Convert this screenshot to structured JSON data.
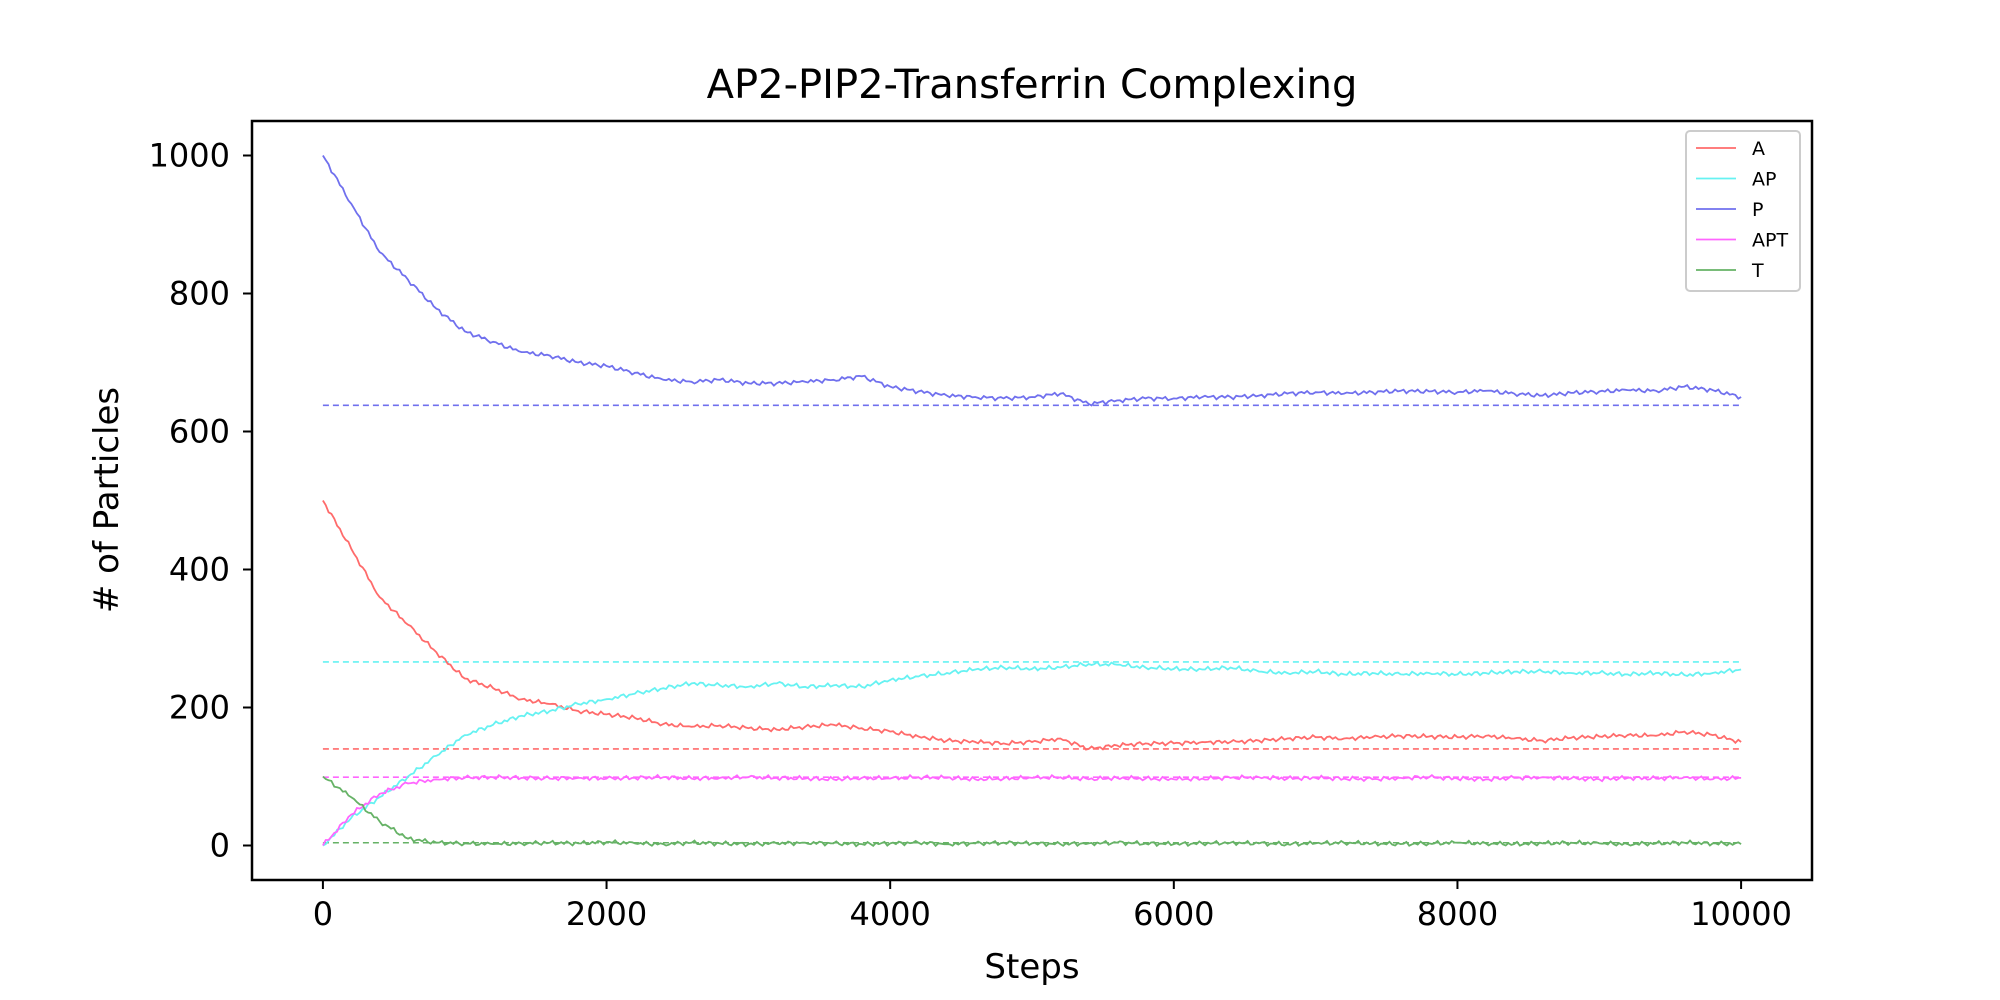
{
  "chart_data": {
    "type": "line",
    "title": "AP2-PIP2-Transferrin Complexing",
    "xlabel": "Steps",
    "ylabel": "# of Particles",
    "xlim": [
      -500,
      10500
    ],
    "ylim": [
      -50,
      1050
    ],
    "xticks": [
      0,
      2000,
      4000,
      6000,
      8000,
      10000
    ],
    "yticks": [
      0,
      200,
      400,
      600,
      800,
      1000
    ],
    "grid": false,
    "legend_position": "top-right",
    "x": [
      0,
      200,
      400,
      600,
      800,
      1000,
      1200,
      1400,
      1600,
      1800,
      2000,
      2200,
      2400,
      2600,
      2800,
      3000,
      3200,
      3400,
      3600,
      3800,
      4000,
      4200,
      4400,
      4600,
      4800,
      5000,
      5200,
      5400,
      5600,
      5800,
      6000,
      6200,
      6400,
      6600,
      6800,
      7000,
      7200,
      7400,
      7600,
      7800,
      8000,
      8200,
      8400,
      8600,
      8800,
      9000,
      9200,
      9400,
      9600,
      9800,
      10000
    ],
    "series": [
      {
        "name": "A",
        "color": "#ff6b6b",
        "values": [
          500,
          430,
          360,
          320,
          280,
          242,
          228,
          212,
          205,
          195,
          190,
          185,
          176,
          172,
          174,
          170,
          168,
          172,
          175,
          170,
          165,
          158,
          152,
          150,
          148,
          150,
          155,
          140,
          145,
          148,
          148,
          150,
          150,
          152,
          155,
          157,
          155,
          157,
          159,
          158,
          157,
          159,
          155,
          152,
          156,
          158,
          160,
          159,
          165,
          160,
          150
        ]
      },
      {
        "name": "AP",
        "color": "#66f2f2",
        "values": [
          0,
          40,
          70,
          100,
          130,
          160,
          175,
          188,
          195,
          205,
          212,
          220,
          228,
          235,
          232,
          230,
          235,
          230,
          232,
          230,
          240,
          245,
          250,
          255,
          258,
          256,
          258,
          263,
          262,
          258,
          256,
          255,
          258,
          252,
          250,
          252,
          248,
          250,
          248,
          250,
          248,
          250,
          252,
          252,
          250,
          250,
          248,
          250,
          247,
          250,
          255
        ]
      },
      {
        "name": "P",
        "color": "#7070ee",
        "values": [
          1000,
          930,
          860,
          820,
          778,
          745,
          730,
          715,
          710,
          700,
          695,
          685,
          675,
          672,
          675,
          670,
          670,
          672,
          675,
          680,
          665,
          658,
          652,
          650,
          648,
          650,
          655,
          640,
          645,
          648,
          648,
          650,
          650,
          652,
          655,
          657,
          655,
          657,
          659,
          658,
          657,
          659,
          655,
          652,
          656,
          658,
          660,
          659,
          665,
          660,
          650
        ]
      },
      {
        "name": "APT",
        "color": "#ff66ff",
        "values": [
          0,
          45,
          75,
          90,
          96,
          98,
          99,
          98,
          97,
          98,
          97,
          98,
          99,
          97,
          98,
          99,
          98,
          97,
          96,
          98,
          97,
          99,
          98,
          96,
          97,
          98,
          99,
          96,
          98,
          97,
          96,
          97,
          98,
          99,
          97,
          98,
          97,
          96,
          98,
          99,
          97,
          96,
          98,
          99,
          97,
          96,
          98,
          97,
          99,
          96,
          98
        ]
      },
      {
        "name": "T",
        "color": "#66b266",
        "values": [
          100,
          70,
          35,
          10,
          4,
          3,
          2,
          3,
          4,
          3,
          5,
          3,
          2,
          4,
          3,
          2,
          3,
          4,
          3,
          2,
          3,
          4,
          2,
          3,
          4,
          3,
          2,
          3,
          4,
          3,
          2,
          3,
          4,
          3,
          2,
          3,
          4,
          3,
          2,
          3,
          4,
          3,
          2,
          3,
          4,
          3,
          2,
          3,
          4,
          3,
          2
        ]
      }
    ],
    "reference_lines": [
      {
        "series": "P",
        "color": "#7070ee",
        "y": 638,
        "x_range": [
          0,
          10000
        ]
      },
      {
        "series": "AP",
        "color": "#66f2f2",
        "y": 266,
        "x_range": [
          0,
          10000
        ]
      },
      {
        "series": "A",
        "color": "#ff6b6b",
        "y": 140,
        "x_range": [
          0,
          10000
        ]
      },
      {
        "series": "APT",
        "color": "#ff66ff",
        "y": 99,
        "x_range": [
          0,
          10000
        ]
      },
      {
        "series": "T",
        "color": "#66b266",
        "y": 4,
        "x_range": [
          0,
          10000
        ]
      }
    ]
  }
}
